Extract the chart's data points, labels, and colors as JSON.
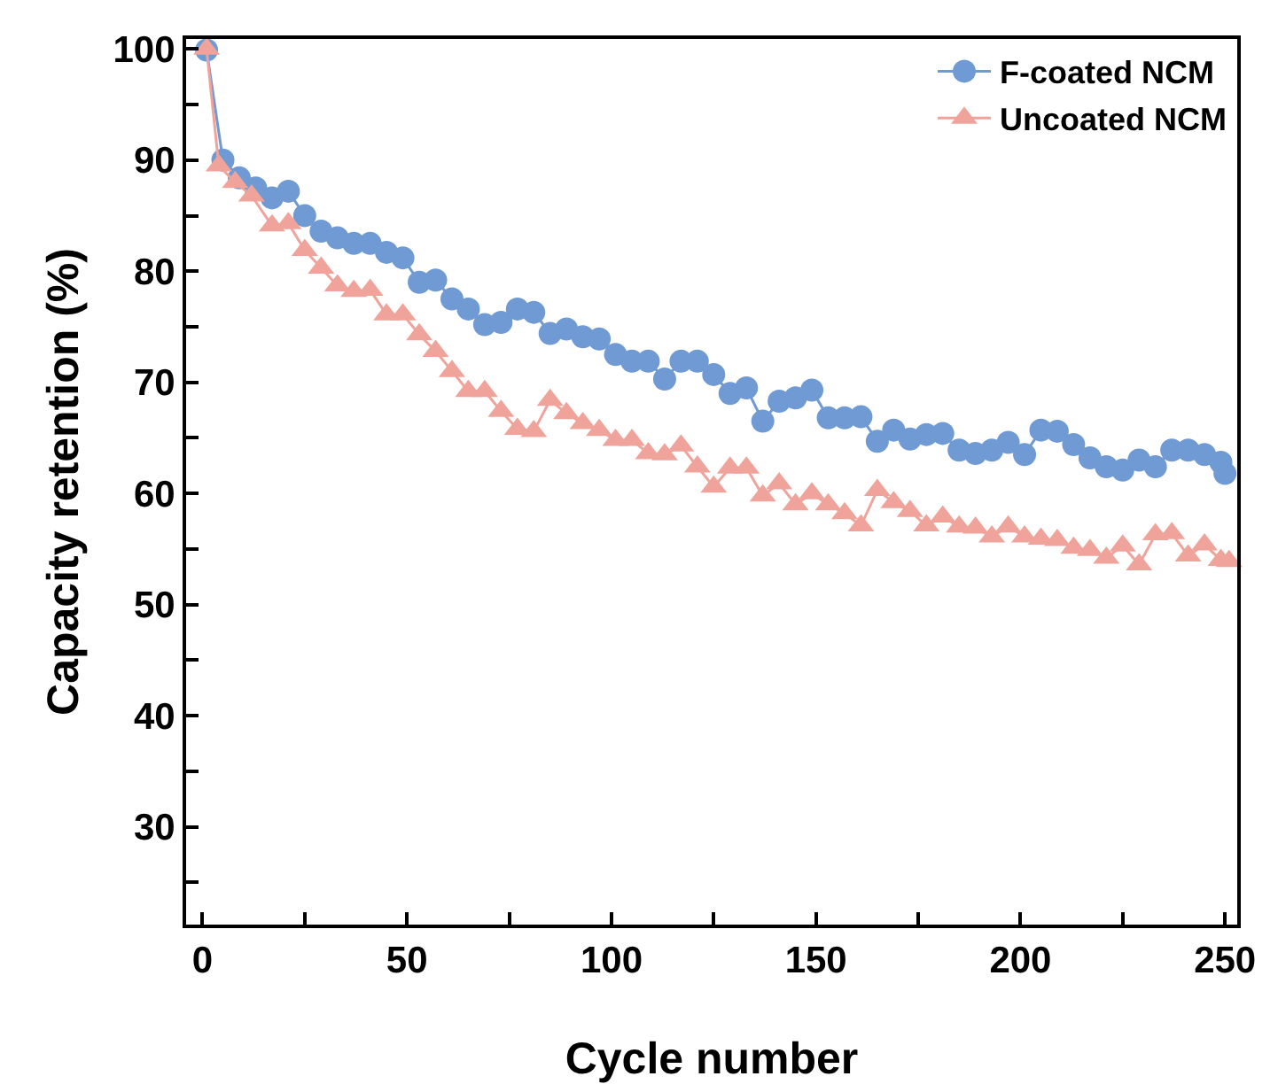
{
  "chart_data": {
    "type": "line",
    "xlabel": "Cycle number",
    "ylabel": "Capacity retention (%)",
    "xlim": [
      -4,
      253
    ],
    "ylim": [
      21.2,
      100.9
    ],
    "xticks": [
      0,
      {
        "value": 25,
        "label": null
      },
      50,
      {
        "value": 75,
        "label": null
      },
      100,
      {
        "value": 125,
        "label": null
      },
      150,
      {
        "value": 175,
        "label": null
      },
      200,
      {
        "value": 225,
        "label": null
      },
      250
    ],
    "yticks": [
      {
        "value": 25,
        "label": null
      },
      30,
      {
        "value": 35,
        "label": null
      },
      40,
      {
        "value": 45,
        "label": null
      },
      50,
      {
        "value": 55,
        "label": null
      },
      60,
      {
        "value": 65,
        "label": null
      },
      70,
      {
        "value": 75,
        "label": null
      },
      80,
      {
        "value": 85,
        "label": null
      },
      90,
      {
        "value": 95,
        "label": null
      },
      100
    ],
    "grid": false,
    "legend": "top right",
    "line_style": "solid",
    "series": [
      {
        "name": "F-coated NCM",
        "color": "#6f9ad3",
        "marker": "circle",
        "x": [
          1,
          5,
          9,
          13,
          17,
          21,
          25,
          29,
          33,
          37,
          41,
          45,
          49,
          53,
          57,
          61,
          65,
          69,
          73,
          77,
          81,
          85,
          89,
          93,
          97,
          101,
          105,
          109,
          113,
          117,
          121,
          125,
          129,
          133,
          137,
          141,
          145,
          149,
          153,
          157,
          161,
          165,
          169,
          173,
          177,
          181,
          185,
          189,
          193,
          197,
          201,
          205,
          209,
          213,
          217,
          221,
          225,
          229,
          233,
          237,
          241,
          245,
          249,
          250
        ],
        "values": [
          99.9,
          90.0,
          88.4,
          87.5,
          86.6,
          87.2,
          85.0,
          83.6,
          83.0,
          82.5,
          82.5,
          81.7,
          81.2,
          79.0,
          79.2,
          77.5,
          76.6,
          75.2,
          75.4,
          76.6,
          76.3,
          74.4,
          74.8,
          74.1,
          73.9,
          72.5,
          71.9,
          71.9,
          70.3,
          71.9,
          71.9,
          70.7,
          69.0,
          69.5,
          66.5,
          68.3,
          68.6,
          69.3,
          66.8,
          66.8,
          66.9,
          64.7,
          65.7,
          64.9,
          65.3,
          65.4,
          63.9,
          63.6,
          63.9,
          64.6,
          63.5,
          65.7,
          65.6,
          64.4,
          63.2,
          62.4,
          62.1,
          63.0,
          62.4,
          63.9,
          63.9,
          63.5,
          62.8,
          61.8
        ]
      },
      {
        "name": "Uncoated NCM",
        "color": "#f0a39b",
        "marker": "triangle",
        "x": [
          1,
          4,
          8,
          12,
          17,
          21,
          25,
          29,
          33,
          37,
          41,
          45,
          49,
          53,
          57,
          61,
          65,
          69,
          73,
          77,
          81,
          85,
          89,
          93,
          97,
          101,
          105,
          109,
          113,
          117,
          121,
          125,
          129,
          133,
          137,
          141,
          145,
          149,
          153,
          157,
          161,
          165,
          169,
          173,
          177,
          181,
          185,
          189,
          193,
          197,
          201,
          205,
          209,
          213,
          217,
          221,
          225,
          229,
          233,
          237,
          241,
          245,
          249,
          251
        ],
        "values": [
          100.0,
          89.5,
          88.0,
          86.8,
          84.1,
          84.3,
          81.9,
          80.3,
          78.7,
          78.2,
          78.3,
          76.1,
          76.1,
          74.3,
          72.8,
          71.0,
          69.2,
          69.2,
          67.4,
          65.8,
          65.6,
          68.4,
          67.2,
          66.3,
          65.7,
          64.8,
          64.8,
          63.6,
          63.5,
          64.3,
          62.4,
          60.6,
          62.3,
          62.3,
          59.8,
          60.9,
          59.0,
          60.0,
          59.0,
          58.2,
          57.1,
          60.3,
          59.2,
          58.4,
          57.1,
          57.9,
          57.0,
          56.9,
          56.1,
          57.0,
          56.1,
          55.9,
          55.8,
          55.1,
          54.9,
          54.2,
          55.3,
          53.6,
          56.3,
          56.4,
          54.4,
          55.4,
          54.0,
          53.9
        ]
      }
    ]
  }
}
